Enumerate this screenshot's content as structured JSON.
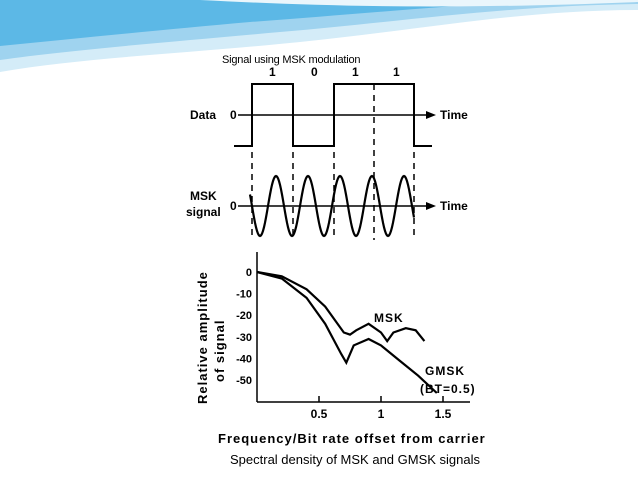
{
  "colors": {
    "swoosh_light": "#d4ecf8",
    "swoosh_mid": "#9fd3ef",
    "swoosh_dark": "#5cb8e6",
    "ink": "#000000"
  },
  "msk_diagram": {
    "caption": "Signal using MSK modulation",
    "data_label": "Data",
    "msk_label_line1": "MSK",
    "msk_label_line2": "signal",
    "time_label_1": "Time",
    "time_label_2": "Time",
    "zero_label_1": "0",
    "zero_label_2": "0",
    "bits": [
      "1",
      "0",
      "1",
      "1"
    ]
  },
  "spectrum_chart": {
    "caption": "Spectral density of MSK and GMSK signals",
    "ylabel_line1": "Relative amplitude",
    "ylabel_line2": "of signal",
    "xlabel": "Frequency/Bit rate offset from carrier",
    "y_ticks": [
      "0",
      "-10",
      "-20",
      "-30",
      "-40",
      "-50"
    ],
    "x_ticks": [
      "0.5",
      "1",
      "1.5"
    ],
    "msk_label": "MSK",
    "gmsk_label_line1": "GMSK",
    "gmsk_label_line2": "(BT=0.5)"
  },
  "chart_data": {
    "type": "line",
    "xlabel": "Frequency/Bit rate offset from carrier",
    "ylabel": "Relative amplitude of signal",
    "xlim": [
      0,
      1.5
    ],
    "ylim": [
      -55,
      0
    ],
    "series": [
      {
        "name": "MSK",
        "x": [
          0,
          0.2,
          0.4,
          0.55,
          0.7,
          0.75,
          0.8,
          0.9,
          1.0,
          1.05,
          1.1,
          1.2,
          1.28,
          1.35
        ],
        "values": [
          0,
          -2,
          -8,
          -16,
          -28,
          -29,
          -27,
          -24,
          -28,
          -32,
          -28,
          -26,
          -27,
          -32
        ]
      },
      {
        "name": "GMSK",
        "x": [
          0,
          0.2,
          0.4,
          0.55,
          0.68,
          0.72,
          0.78,
          0.9,
          1.0,
          1.15,
          1.3,
          1.45
        ],
        "values": [
          0,
          -3,
          -12,
          -24,
          -38,
          -42,
          -34,
          -31,
          -34,
          -41,
          -48,
          -56
        ]
      }
    ]
  }
}
